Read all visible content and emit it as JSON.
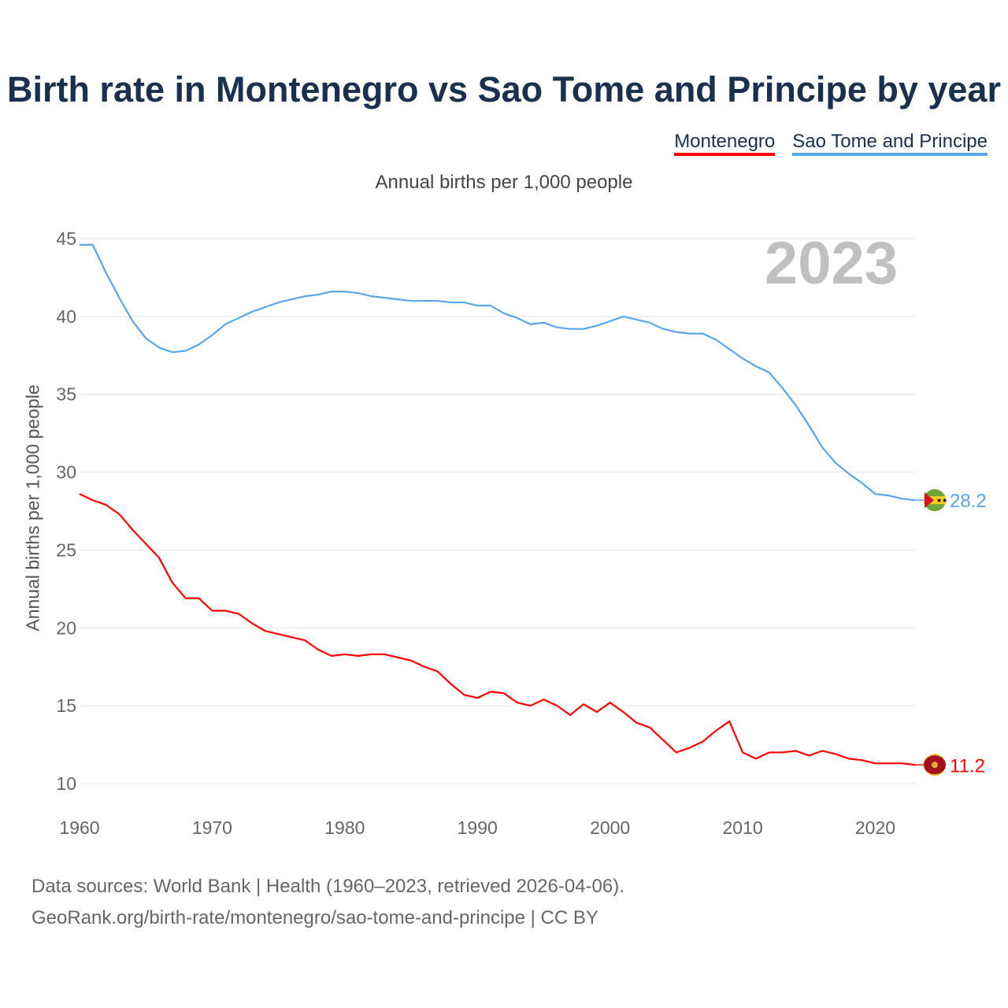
{
  "chart_data": {
    "type": "line",
    "title": "Birth rate in Montenegro vs Sao Tome and Principe by year",
    "subtitle": "Annual births per 1,000 people",
    "ylabel": "Annual births per 1,000 people",
    "xlabel": "",
    "xlim": [
      1960,
      2023
    ],
    "ylim": [
      10,
      45
    ],
    "yticks": [
      "45",
      "40",
      "35",
      "30",
      "25",
      "20",
      "15",
      "10"
    ],
    "xticks": [
      "1960",
      "1970",
      "1980",
      "1990",
      "2000",
      "2010",
      "2020"
    ],
    "grid": true,
    "legend_position": "top-right",
    "year_watermark": "2023",
    "x": [
      1960,
      1961,
      1962,
      1963,
      1964,
      1965,
      1966,
      1967,
      1968,
      1969,
      1970,
      1971,
      1972,
      1973,
      1974,
      1975,
      1976,
      1977,
      1978,
      1979,
      1980,
      1981,
      1982,
      1983,
      1984,
      1985,
      1986,
      1987,
      1988,
      1989,
      1990,
      1991,
      1992,
      1993,
      1994,
      1995,
      1996,
      1997,
      1998,
      1999,
      2000,
      2001,
      2002,
      2003,
      2004,
      2005,
      2006,
      2007,
      2008,
      2009,
      2010,
      2011,
      2012,
      2013,
      2014,
      2015,
      2016,
      2017,
      2018,
      2019,
      2020,
      2021,
      2022,
      2023
    ],
    "series": [
      {
        "name": "Montenegro",
        "color": "#ff0000",
        "end_label": "11.2",
        "values": [
          28.6,
          28.2,
          27.9,
          27.3,
          26.3,
          25.4,
          24.5,
          22.9,
          21.9,
          21.9,
          21.1,
          21.1,
          20.9,
          20.3,
          19.8,
          19.6,
          19.4,
          19.2,
          18.6,
          18.2,
          18.3,
          18.2,
          18.3,
          18.3,
          18.1,
          17.9,
          17.5,
          17.2,
          16.4,
          15.7,
          15.5,
          15.9,
          15.8,
          15.2,
          15.0,
          15.4,
          15.0,
          14.4,
          15.1,
          14.6,
          15.2,
          14.6,
          13.9,
          13.6,
          12.8,
          12.0,
          12.3,
          12.7,
          13.4,
          14.0,
          12.0,
          11.6,
          12.0,
          12.0,
          12.1,
          11.8,
          12.1,
          11.9,
          11.6,
          11.5,
          11.3,
          11.3,
          11.3,
          11.2
        ]
      },
      {
        "name": "Sao Tome and Principe",
        "color": "#5aa5ea",
        "end_label": "28.2",
        "values": [
          44.6,
          44.6,
          42.8,
          41.2,
          39.7,
          38.6,
          38.0,
          37.7,
          37.8,
          38.2,
          38.8,
          39.5,
          39.9,
          40.3,
          40.6,
          40.9,
          41.1,
          41.3,
          41.4,
          41.6,
          41.6,
          41.5,
          41.3,
          41.2,
          41.1,
          41.0,
          41.0,
          41.0,
          40.9,
          40.9,
          40.7,
          40.7,
          40.2,
          39.9,
          39.5,
          39.6,
          39.3,
          39.2,
          39.2,
          39.4,
          39.7,
          40.0,
          39.8,
          39.6,
          39.2,
          39.0,
          38.9,
          38.9,
          38.5,
          37.9,
          37.3,
          36.8,
          36.4,
          35.4,
          34.3,
          33.0,
          31.6,
          30.6,
          29.9,
          29.3,
          28.6,
          28.5,
          28.3,
          28.2
        ]
      }
    ]
  },
  "footer": {
    "line1": "Data sources: World Bank | Health (1960–2023, retrieved 2026-04-06).",
    "line2": "GeoRank.org/birth-rate/montenegro/sao-tome-and-principe | CC BY"
  }
}
